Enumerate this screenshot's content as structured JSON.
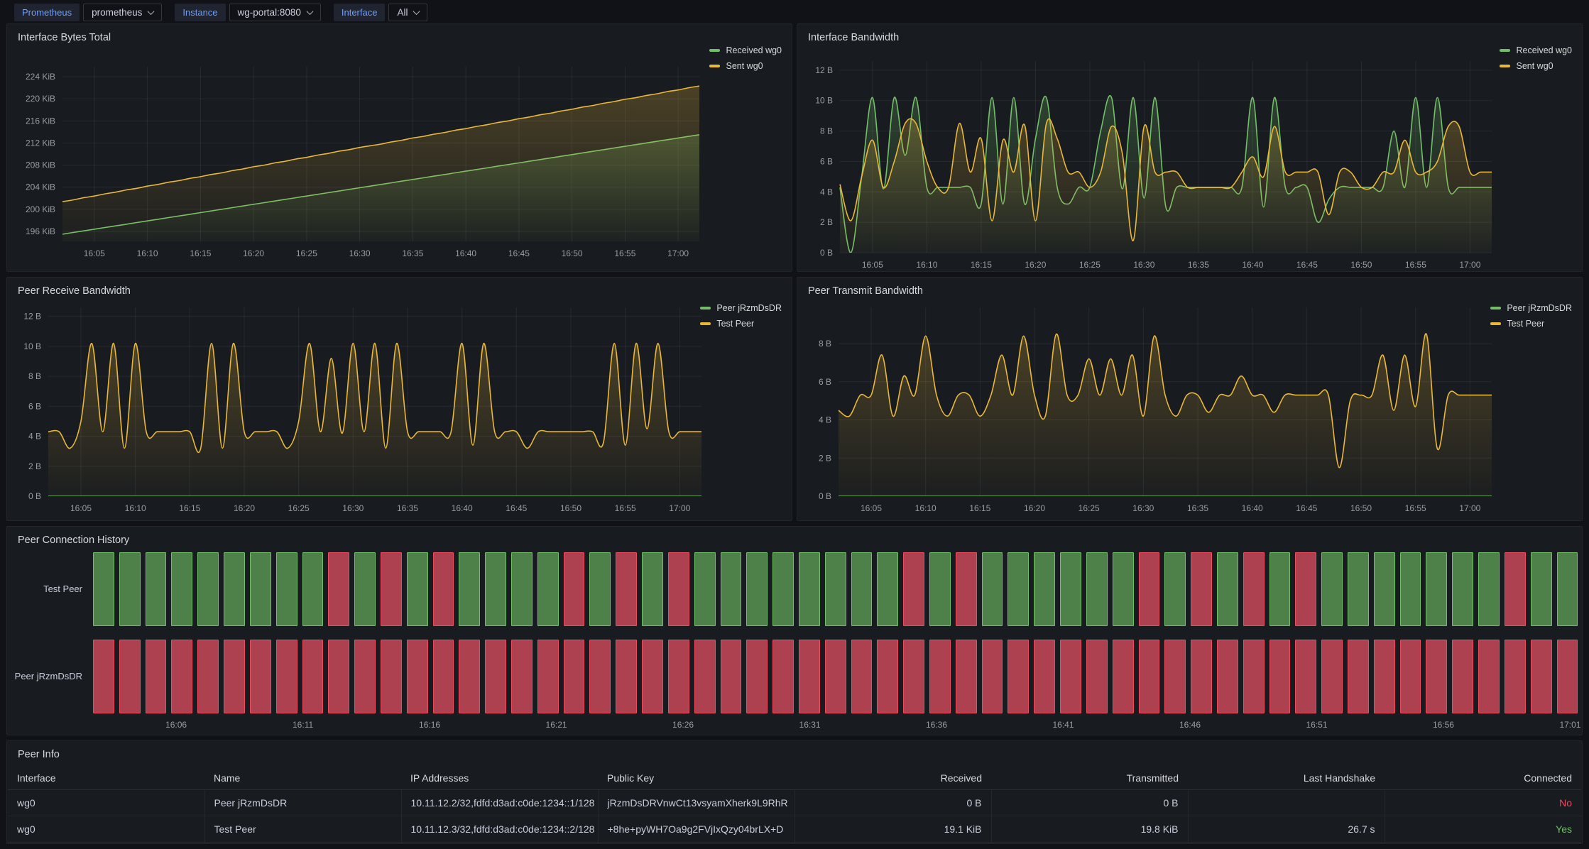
{
  "toolbar": {
    "variables": [
      {
        "label": "Prometheus",
        "value": "prometheus"
      },
      {
        "label": "Instance",
        "value": "wg-portal:8080"
      },
      {
        "label": "Interface",
        "value": "All"
      }
    ]
  },
  "colors": {
    "green": "#73bf69",
    "yellow": "#eab839",
    "red": "#f2495c",
    "state_up_fill": "#4e8049",
    "state_down_fill": "#ad4150",
    "accent_blue": "#6e9fff"
  },
  "chart_data": [
    {
      "type": "line",
      "title": "Interface Bytes Total",
      "x_range": [
        2,
        62
      ],
      "ylim": [
        194.2,
        225.8
      ],
      "ylabel": "",
      "grid": true,
      "legend_position": "right-top",
      "yticks": [
        {
          "v": 224,
          "label": "224 KiB"
        },
        {
          "v": 220,
          "label": "220 KiB"
        },
        {
          "v": 216,
          "label": "216 KiB"
        },
        {
          "v": 212,
          "label": "212 KiB"
        },
        {
          "v": 208,
          "label": "208 KiB"
        },
        {
          "v": 204,
          "label": "204 KiB"
        },
        {
          "v": 200,
          "label": "200 KiB"
        },
        {
          "v": 196,
          "label": "196 KiB"
        }
      ],
      "xticks": [
        {
          "m": 5,
          "label": "16:05"
        },
        {
          "m": 10,
          "label": "16:10"
        },
        {
          "m": 15,
          "label": "16:15"
        },
        {
          "m": 20,
          "label": "16:20"
        },
        {
          "m": 25,
          "label": "16:25"
        },
        {
          "m": 30,
          "label": "16:30"
        },
        {
          "m": 35,
          "label": "16:35"
        },
        {
          "m": 40,
          "label": "16:40"
        },
        {
          "m": 45,
          "label": "16:45"
        },
        {
          "m": 50,
          "label": "16:50"
        },
        {
          "m": 55,
          "label": "16:55"
        },
        {
          "m": 60,
          "label": "17:00"
        }
      ],
      "series": [
        {
          "name": "Received wg0",
          "color": "green",
          "values": [
            195.5,
            195.8,
            196.1,
            196.4,
            196.7,
            197.0,
            197.3,
            197.6,
            197.9,
            198.2,
            198.5,
            198.8,
            199.1,
            199.4,
            199.7,
            200.0,
            200.3,
            200.6,
            200.9,
            201.2,
            201.5,
            201.8,
            202.1,
            202.4,
            202.7,
            203.0,
            203.3,
            203.6,
            203.9,
            204.2,
            204.5,
            204.8,
            205.1,
            205.4,
            205.7,
            206.0,
            206.3,
            206.6,
            206.9,
            207.2,
            207.5,
            207.8,
            208.1,
            208.4,
            208.7,
            209.0,
            209.3,
            209.6,
            209.9,
            210.2,
            210.5,
            210.8,
            211.1,
            211.4,
            211.7,
            212.0,
            212.3,
            212.6,
            212.9,
            213.2,
            213.5
          ]
        },
        {
          "name": "Sent wg0",
          "color": "yellow",
          "values": [
            201.4,
            201.7,
            202.1,
            202.4,
            202.8,
            203.1,
            203.5,
            203.8,
            204.2,
            204.5,
            204.9,
            205.2,
            205.6,
            205.9,
            206.3,
            206.6,
            207.0,
            207.3,
            207.7,
            208.0,
            208.4,
            208.7,
            209.1,
            209.4,
            209.8,
            210.1,
            210.5,
            210.8,
            211.2,
            211.5,
            211.8,
            212.2,
            212.5,
            212.9,
            213.2,
            213.6,
            213.9,
            214.3,
            214.6,
            215.0,
            215.3,
            215.7,
            216.0,
            216.4,
            216.7,
            217.1,
            217.4,
            217.8,
            218.1,
            218.5,
            218.8,
            219.2,
            219.5,
            219.9,
            220.2,
            220.6,
            220.9,
            221.3,
            221.6,
            222.0,
            222.3
          ]
        }
      ]
    },
    {
      "type": "line",
      "title": "Interface Bandwidth",
      "x_range": [
        2,
        62
      ],
      "ylim": [
        0,
        12.6
      ],
      "grid": true,
      "legend_position": "right-top",
      "yticks": [
        {
          "v": 12,
          "label": "12 B"
        },
        {
          "v": 10,
          "label": "10 B"
        },
        {
          "v": 8,
          "label": "8 B"
        },
        {
          "v": 6,
          "label": "6 B"
        },
        {
          "v": 4,
          "label": "4 B"
        },
        {
          "v": 2,
          "label": "2 B"
        },
        {
          "v": 0,
          "label": "0 B"
        }
      ],
      "xticks": [
        {
          "m": 5,
          "label": "16:05"
        },
        {
          "m": 10,
          "label": "16:10"
        },
        {
          "m": 15,
          "label": "16:15"
        },
        {
          "m": 20,
          "label": "16:20"
        },
        {
          "m": 25,
          "label": "16:25"
        },
        {
          "m": 30,
          "label": "16:30"
        },
        {
          "m": 35,
          "label": "16:35"
        },
        {
          "m": 40,
          "label": "16:40"
        },
        {
          "m": 45,
          "label": "16:45"
        },
        {
          "m": 50,
          "label": "16:50"
        },
        {
          "m": 55,
          "label": "16:55"
        },
        {
          "m": 60,
          "label": "17:00"
        }
      ],
      "series": [
        {
          "name": "Received wg0",
          "color": "green",
          "values": [
            4.3,
            0,
            5,
            10.2,
            4.2,
            10.2,
            6.4,
            10.2,
            4.3,
            4.3,
            4.3,
            4.3,
            4.3,
            3.2,
            10.2,
            3.2,
            10.2,
            3.2,
            7.5,
            10.2,
            4.3,
            3.2,
            4.3,
            4.3,
            8,
            10.2,
            4.2,
            10.2,
            3.6,
            10.2,
            3,
            4.3,
            4.3,
            4.3,
            4.3,
            4.3,
            4.3,
            4.3,
            10.2,
            3,
            10.2,
            4.3,
            4.3,
            4.3,
            2,
            3.5,
            4.3,
            4.3,
            4.3,
            4.3,
            4.3,
            8,
            4.3,
            10.2,
            4.3,
            10.2,
            4.3,
            4.3,
            4.3,
            4.3,
            4.3
          ]
        },
        {
          "name": "Sent wg0",
          "color": "yellow",
          "values": [
            4.5,
            2.1,
            5,
            7.4,
            4.3,
            6,
            8.5,
            8.5,
            6,
            4.3,
            4.3,
            8.5,
            5.3,
            7.5,
            2.1,
            7.4,
            5.3,
            8.4,
            2.1,
            8.5,
            7.5,
            5.3,
            5.3,
            4.3,
            5.3,
            8.3,
            6.5,
            0.8,
            8.3,
            5.3,
            5.3,
            5.3,
            4.3,
            4.3,
            4.3,
            4.3,
            4.3,
            5.3,
            6.3,
            5,
            8.3,
            5.3,
            5.3,
            5.3,
            5.3,
            2.5,
            5.3,
            5.3,
            4.3,
            4.3,
            5.3,
            5.3,
            7.4,
            5.3,
            5.3,
            6,
            8.3,
            8.3,
            5.3,
            5.3,
            5.3
          ]
        }
      ]
    },
    {
      "type": "line",
      "title": "Peer Receive Bandwidth",
      "x_range": [
        2,
        62
      ],
      "ylim": [
        0,
        12.6
      ],
      "grid": true,
      "legend_position": "right-top",
      "yticks": [
        {
          "v": 12,
          "label": "12 B"
        },
        {
          "v": 10,
          "label": "10 B"
        },
        {
          "v": 8,
          "label": "8 B"
        },
        {
          "v": 6,
          "label": "6 B"
        },
        {
          "v": 4,
          "label": "4 B"
        },
        {
          "v": 2,
          "label": "2 B"
        },
        {
          "v": 0,
          "label": "0 B"
        }
      ],
      "xticks": [
        {
          "m": 5,
          "label": "16:05"
        },
        {
          "m": 10,
          "label": "16:10"
        },
        {
          "m": 15,
          "label": "16:15"
        },
        {
          "m": 20,
          "label": "16:20"
        },
        {
          "m": 25,
          "label": "16:25"
        },
        {
          "m": 30,
          "label": "16:30"
        },
        {
          "m": 35,
          "label": "16:35"
        },
        {
          "m": 40,
          "label": "16:40"
        },
        {
          "m": 45,
          "label": "16:45"
        },
        {
          "m": 50,
          "label": "16:50"
        },
        {
          "m": 55,
          "label": "16:55"
        },
        {
          "m": 60,
          "label": "17:00"
        }
      ],
      "series": [
        {
          "name": "Peer jRzmDsDR",
          "color": "green",
          "values": 0
        },
        {
          "name": "Test Peer",
          "color": "yellow",
          "values": [
            4.3,
            4.3,
            3.2,
            5,
            10.2,
            4.3,
            10.2,
            3.2,
            10.2,
            4.3,
            4.3,
            4.3,
            4.3,
            4.3,
            3.2,
            10.2,
            3.2,
            10.2,
            4.3,
            4.3,
            4.3,
            4.3,
            3.2,
            5,
            10.2,
            4.3,
            9.2,
            4.2,
            10.2,
            4.3,
            10.2,
            3.2,
            10.2,
            4.3,
            4.3,
            4.3,
            4.3,
            4.3,
            10.2,
            3.4,
            10.2,
            4.3,
            4.3,
            4.3,
            3.2,
            4.3,
            4.3,
            4.3,
            4.3,
            4.3,
            4.3,
            3.6,
            10.2,
            3.4,
            10.2,
            4.5,
            10.2,
            4.3,
            4.3,
            4.3,
            4.3
          ]
        }
      ]
    },
    {
      "type": "line",
      "title": "Peer Transmit Bandwidth",
      "x_range": [
        2,
        62
      ],
      "ylim": [
        0,
        9.9
      ],
      "grid": true,
      "legend_position": "right-top",
      "yticks": [
        {
          "v": 8,
          "label": "8 B"
        },
        {
          "v": 6,
          "label": "6 B"
        },
        {
          "v": 4,
          "label": "4 B"
        },
        {
          "v": 2,
          "label": "2 B"
        },
        {
          "v": 0,
          "label": "0 B"
        }
      ],
      "xticks": [
        {
          "m": 5,
          "label": "16:05"
        },
        {
          "m": 10,
          "label": "16:10"
        },
        {
          "m": 15,
          "label": "16:15"
        },
        {
          "m": 20,
          "label": "16:20"
        },
        {
          "m": 25,
          "label": "16:25"
        },
        {
          "m": 30,
          "label": "16:30"
        },
        {
          "m": 35,
          "label": "16:35"
        },
        {
          "m": 40,
          "label": "16:40"
        },
        {
          "m": 45,
          "label": "16:45"
        },
        {
          "m": 50,
          "label": "16:50"
        },
        {
          "m": 55,
          "label": "16:55"
        },
        {
          "m": 60,
          "label": "17:00"
        }
      ],
      "series": [
        {
          "name": "Peer jRzmDsDR",
          "color": "green",
          "values": 0
        },
        {
          "name": "Test Peer",
          "color": "yellow",
          "values": [
            4.5,
            4.2,
            5.3,
            5.3,
            7.4,
            4.2,
            6.3,
            5.3,
            8.4,
            5.3,
            4.2,
            5.3,
            5.3,
            4.2,
            5.3,
            7.4,
            5.3,
            8.4,
            5.3,
            4.2,
            8.5,
            5.3,
            5.3,
            7.2,
            5.3,
            7.2,
            5.3,
            7.4,
            4.2,
            8.4,
            5.3,
            4.2,
            5.3,
            5.3,
            4.4,
            5.3,
            5.3,
            6.3,
            5.3,
            5.3,
            4.4,
            5.3,
            5.3,
            5.3,
            5.3,
            5.3,
            1.5,
            5,
            5.3,
            5.3,
            7.4,
            4.5,
            7.4,
            4.7,
            8.5,
            2.5,
            5.3,
            5.3,
            5.3,
            5.3,
            5.3
          ]
        }
      ]
    },
    {
      "type": "state_timeline",
      "title": "Peer Connection History",
      "state_meaning": {
        "1": "connected",
        "0": "disconnected"
      },
      "rows": [
        {
          "label": "Test Peer",
          "states": [
            1,
            1,
            1,
            1,
            1,
            1,
            1,
            1,
            1,
            0,
            1,
            0,
            1,
            0,
            1,
            1,
            1,
            1,
            0,
            1,
            0,
            1,
            0,
            1,
            1,
            1,
            1,
            1,
            1,
            1,
            1,
            0,
            1,
            0,
            1,
            1,
            1,
            1,
            1,
            1,
            0,
            1,
            0,
            1,
            0,
            1,
            0,
            1,
            1,
            1,
            1,
            1,
            1,
            1,
            0,
            1,
            1
          ]
        },
        {
          "label": "Peer jRzmDsDR",
          "states": [
            0,
            0,
            0,
            0,
            0,
            0,
            0,
            0,
            0,
            0,
            0,
            0,
            0,
            0,
            0,
            0,
            0,
            0,
            0,
            0,
            0,
            0,
            0,
            0,
            0,
            0,
            0,
            0,
            0,
            0,
            0,
            0,
            0,
            0,
            0,
            0,
            0,
            0,
            0,
            0,
            0,
            0,
            0,
            0,
            0,
            0,
            0,
            0,
            0,
            0,
            0,
            0,
            0,
            0,
            0,
            0,
            0
          ]
        }
      ],
      "xticks": [
        "16:06",
        "16:11",
        "16:16",
        "16:21",
        "16:26",
        "16:31",
        "16:36",
        "16:41",
        "16:46",
        "16:51",
        "16:56",
        "17:01"
      ]
    },
    {
      "type": "table",
      "title": "Peer Info",
      "headers": [
        "Interface",
        "Name",
        "IP Addresses",
        "Public Key",
        "Received",
        "Transmitted",
        "Last Handshake",
        "Connected"
      ],
      "numeric_columns_from": 4,
      "rows": [
        [
          "wg0",
          "Peer jRzmDsDR",
          "10.11.12.2/32,fdfd:d3ad:c0de:1234::1/128",
          "jRzmDsDRVnwCt13vsyamXherk9L9RhR",
          "0 B",
          "0 B",
          "",
          "No"
        ],
        [
          "wg0",
          "Test Peer",
          "10.11.12.3/32,fdfd:d3ad:c0de:1234::2/128",
          "+8he+pyWH7Oa9g2FVjIxQzy04brLX+D",
          "19.1 KiB",
          "19.8 KiB",
          "26.7 s",
          "Yes"
        ]
      ]
    }
  ]
}
